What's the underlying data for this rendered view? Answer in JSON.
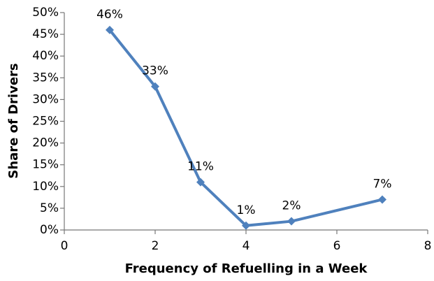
{
  "chart_data": {
    "type": "line",
    "x_label": "Frequency of Refuelling in a Week",
    "y_label": "Share of Drivers",
    "x": [
      1,
      2,
      3,
      4,
      5,
      7
    ],
    "series": [
      {
        "color": "#4f81bd",
        "values": [
          46,
          33,
          11,
          1,
          2,
          7
        ],
        "value_labels": [
          "46%",
          "33%",
          "11%",
          "1%",
          "2%",
          "7%"
        ]
      }
    ],
    "xlim": [
      0,
      8
    ],
    "xticks": [
      0,
      2,
      4,
      6,
      8
    ],
    "ylim": [
      0,
      50
    ],
    "yticks": [
      {
        "value": 0,
        "label": "0%"
      },
      {
        "value": 5,
        "label": "5%"
      },
      {
        "value": 10,
        "label": "10%"
      },
      {
        "value": 15,
        "label": "15%"
      },
      {
        "value": 20,
        "label": "20%"
      },
      {
        "value": 25,
        "label": "25%"
      },
      {
        "value": 30,
        "label": "30%"
      },
      {
        "value": 35,
        "label": "35%"
      },
      {
        "value": 40,
        "label": "40%"
      },
      {
        "value": 45,
        "label": "45%"
      },
      {
        "value": 50,
        "label": "50%"
      }
    ],
    "grid": false
  }
}
